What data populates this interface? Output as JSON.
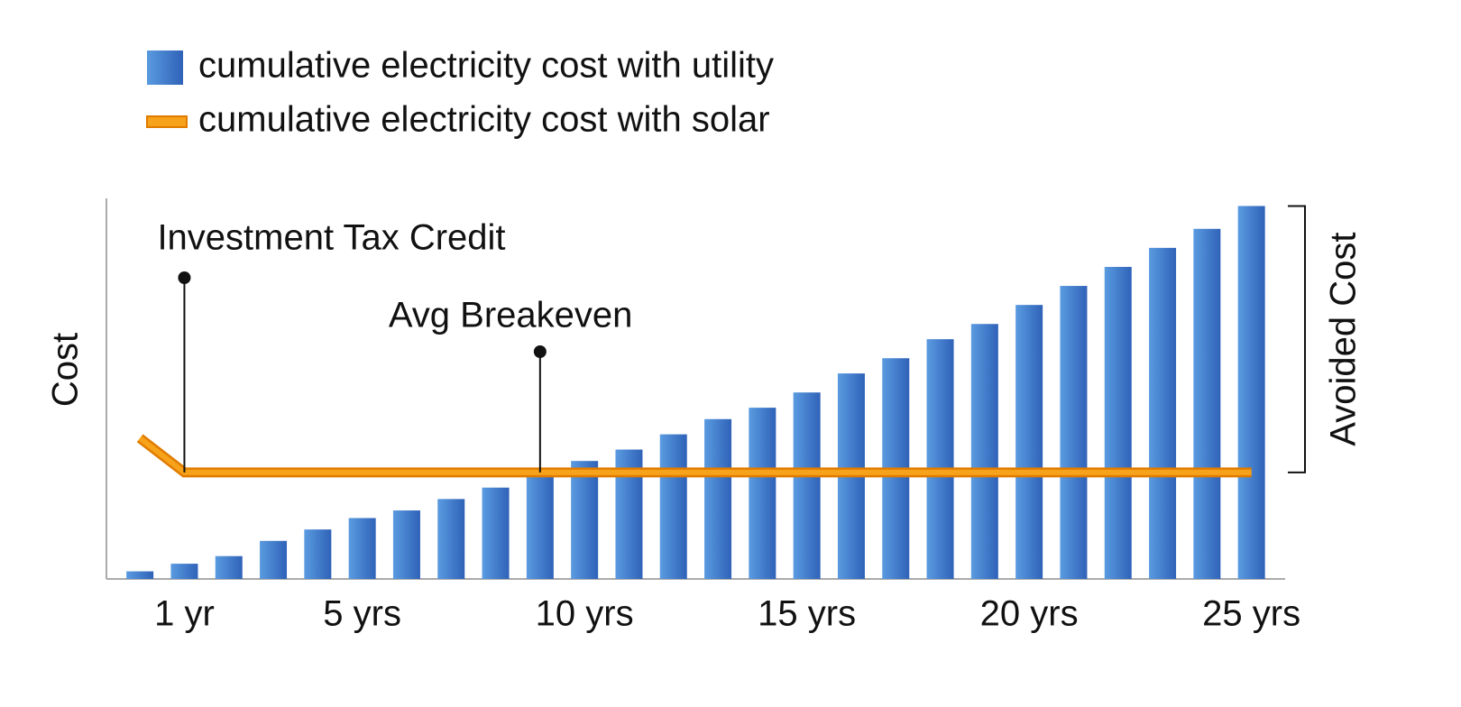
{
  "chart_data": {
    "type": "bar",
    "y_label": "Cost",
    "categories": [
      null,
      "1 yr",
      null,
      null,
      null,
      "5 yrs",
      null,
      null,
      null,
      null,
      "10 yrs",
      null,
      null,
      null,
      null,
      "15 yrs",
      null,
      null,
      null,
      null,
      "20 yrs",
      null,
      null,
      null,
      null,
      "25 yrs"
    ],
    "series": [
      {
        "name": "cumulative electricity cost with utility",
        "type": "bar",
        "color": "#3a78c9",
        "values": [
          2,
          4,
          6,
          10,
          13,
          16,
          18,
          21,
          24,
          27,
          31,
          34,
          38,
          42,
          45,
          49,
          54,
          58,
          63,
          67,
          72,
          77,
          82,
          87,
          92,
          98
        ]
      },
      {
        "name": "cumulative electricity cost with solar",
        "type": "line",
        "color": "#f7a21b",
        "values": [
          37,
          28,
          28,
          28,
          28,
          28,
          28,
          28,
          28,
          28,
          28,
          28,
          28,
          28,
          28,
          28,
          28,
          28,
          28,
          28,
          28,
          28,
          28,
          28,
          28,
          28
        ]
      }
    ],
    "ylim": [
      0,
      100
    ],
    "annotations": [
      "Investment Tax Credit",
      "Avg Breakeven"
    ],
    "bracket_label": "Avoided Cost"
  }
}
